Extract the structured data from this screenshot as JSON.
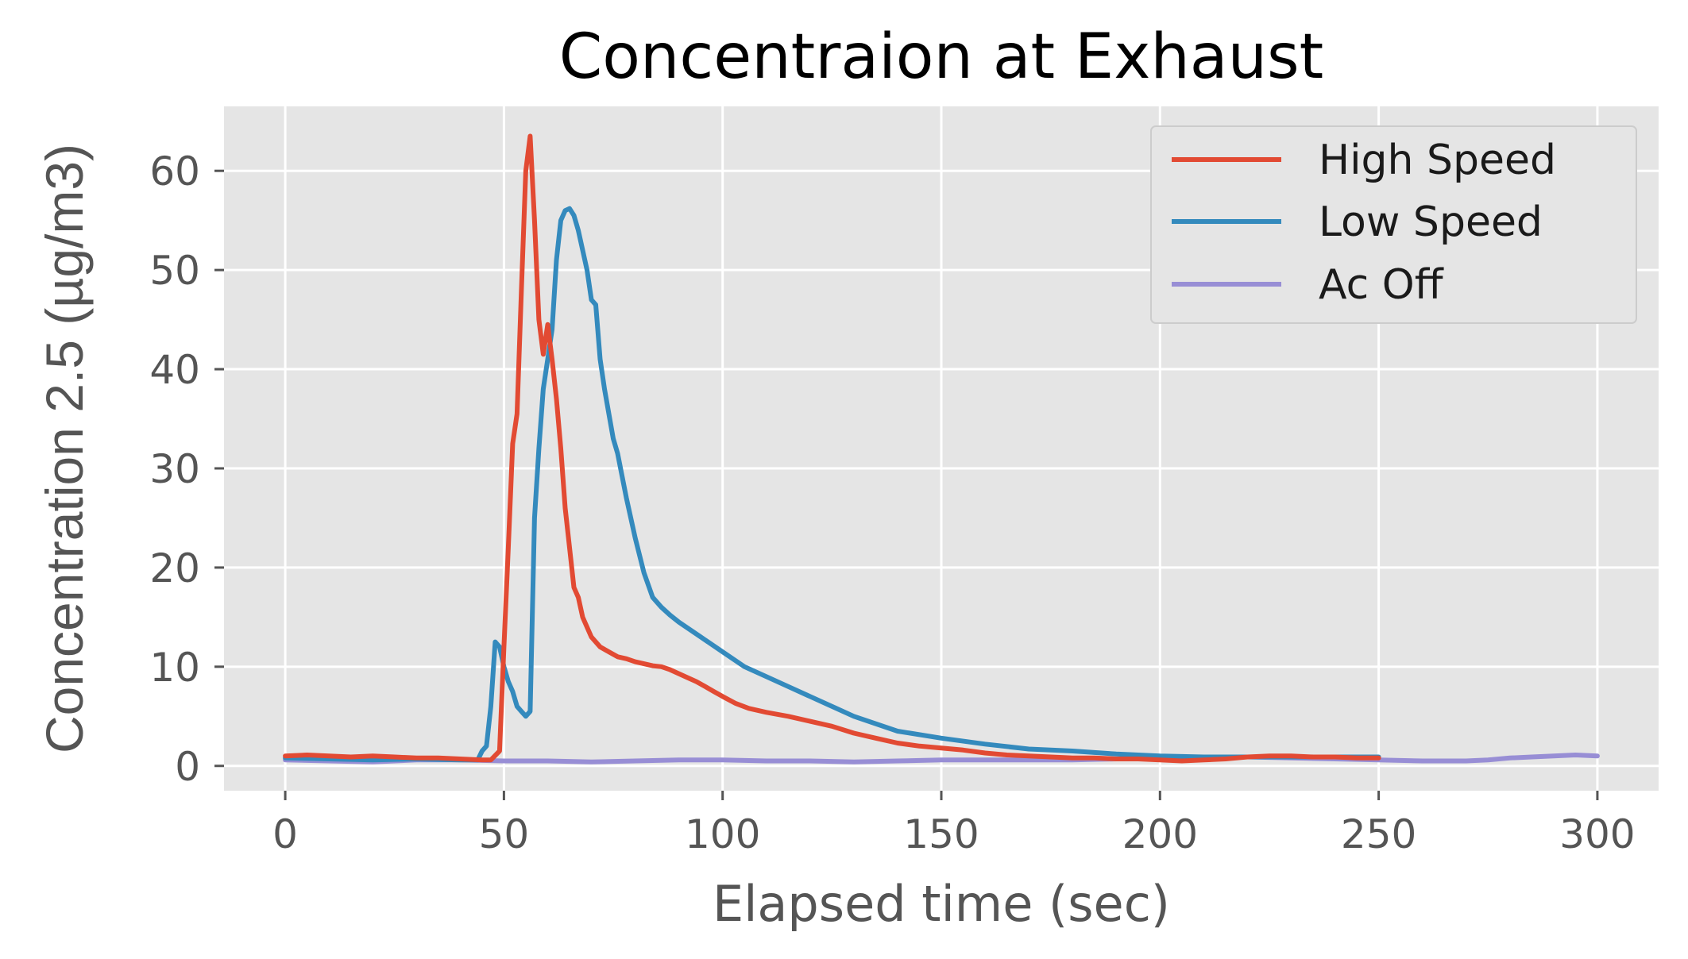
{
  "chart_data": {
    "type": "line",
    "title": "Concentraion at Exhaust",
    "xlabel": "Elapsed time (sec)",
    "ylabel": "Concentration 2.5 (µg/m3)",
    "xlim": [
      -14,
      314
    ],
    "ylim": [
      -2.5,
      66.5
    ],
    "xticks": [
      0,
      50,
      100,
      150,
      200,
      250,
      300
    ],
    "yticks": [
      0,
      10,
      20,
      30,
      40,
      50,
      60
    ],
    "grid": true,
    "legend_position": "top-right",
    "series": [
      {
        "name": "High Speed",
        "color": "#E24A33",
        "x": [
          0,
          5,
          10,
          15,
          20,
          25,
          30,
          35,
          40,
          45,
          47,
          49,
          50,
          51,
          52,
          53,
          54,
          55,
          56,
          57,
          58,
          59,
          60,
          61,
          62,
          63,
          64,
          65,
          66,
          67,
          68,
          69,
          70,
          72,
          74,
          76,
          78,
          80,
          82,
          84,
          86,
          88,
          90,
          92,
          94,
          96,
          98,
          100,
          103,
          106,
          110,
          115,
          120,
          125,
          130,
          135,
          140,
          145,
          150,
          155,
          160,
          165,
          170,
          175,
          180,
          185,
          190,
          195,
          200,
          205,
          210,
          215,
          220,
          225,
          230,
          235,
          240,
          245,
          250
        ],
        "y": [
          1.0,
          1.1,
          1.0,
          0.9,
          1.0,
          0.9,
          0.8,
          0.8,
          0.7,
          0.6,
          0.6,
          1.5,
          12,
          22,
          32.5,
          35.5,
          48,
          60,
          63.5,
          55,
          45,
          41.5,
          44.5,
          41,
          37,
          32,
          26,
          22,
          18,
          17,
          15,
          14,
          13,
          12,
          11.5,
          11,
          10.8,
          10.5,
          10.3,
          10.1,
          10,
          9.7,
          9.3,
          8.9,
          8.5,
          8,
          7.5,
          7,
          6.3,
          5.8,
          5.4,
          5,
          4.5,
          4,
          3.3,
          2.8,
          2.3,
          2.0,
          1.8,
          1.6,
          1.3,
          1.1,
          1.0,
          0.9,
          0.8,
          0.8,
          0.7,
          0.7,
          0.6,
          0.5,
          0.6,
          0.7,
          0.9,
          1.0,
          1.0,
          0.9,
          0.9,
          0.8,
          0.8
        ]
      },
      {
        "name": "Low Speed",
        "color": "#348ABD",
        "x": [
          0,
          10,
          20,
          30,
          40,
          44,
          45,
          46,
          47,
          48,
          49,
          50,
          51,
          52,
          53,
          54,
          55,
          56,
          57,
          58,
          59,
          60,
          61,
          62,
          63,
          64,
          65,
          66,
          67,
          68,
          69,
          70,
          71,
          72,
          73,
          74,
          75,
          76,
          78,
          80,
          82,
          84,
          86,
          88,
          90,
          95,
          100,
          105,
          110,
          115,
          120,
          130,
          140,
          150,
          160,
          170,
          180,
          190,
          200,
          210,
          220,
          230,
          240,
          250
        ],
        "y": [
          0.8,
          0.7,
          0.6,
          0.7,
          0.6,
          0.6,
          1.5,
          2,
          6,
          12.5,
          12,
          10,
          8.5,
          7.5,
          6,
          5.5,
          5,
          5.5,
          25,
          32,
          38,
          41,
          44,
          51,
          55,
          56,
          56.2,
          55.5,
          54,
          52,
          50,
          47,
          46.5,
          41,
          38,
          35.5,
          33,
          31.5,
          27,
          23,
          19.5,
          17,
          16,
          15.2,
          14.5,
          13,
          11.5,
          10,
          9,
          8,
          7,
          5,
          3.5,
          2.8,
          2.2,
          1.7,
          1.5,
          1.2,
          1.0,
          0.9,
          0.9,
          0.9,
          0.9,
          0.9
        ]
      },
      {
        "name": "Ac Off",
        "color": "#988ED5",
        "x": [
          0,
          10,
          20,
          30,
          40,
          50,
          60,
          70,
          80,
          90,
          100,
          110,
          120,
          130,
          140,
          150,
          160,
          170,
          180,
          190,
          200,
          210,
          220,
          230,
          240,
          250,
          260,
          270,
          275,
          280,
          285,
          290,
          295,
          300
        ],
        "y": [
          0.6,
          0.5,
          0.4,
          0.6,
          0.6,
          0.5,
          0.5,
          0.4,
          0.5,
          0.6,
          0.6,
          0.5,
          0.5,
          0.4,
          0.5,
          0.6,
          0.6,
          0.6,
          0.6,
          0.7,
          0.8,
          0.9,
          0.9,
          0.8,
          0.7,
          0.6,
          0.5,
          0.5,
          0.6,
          0.8,
          0.9,
          1.0,
          1.1,
          1.0
        ]
      }
    ]
  }
}
